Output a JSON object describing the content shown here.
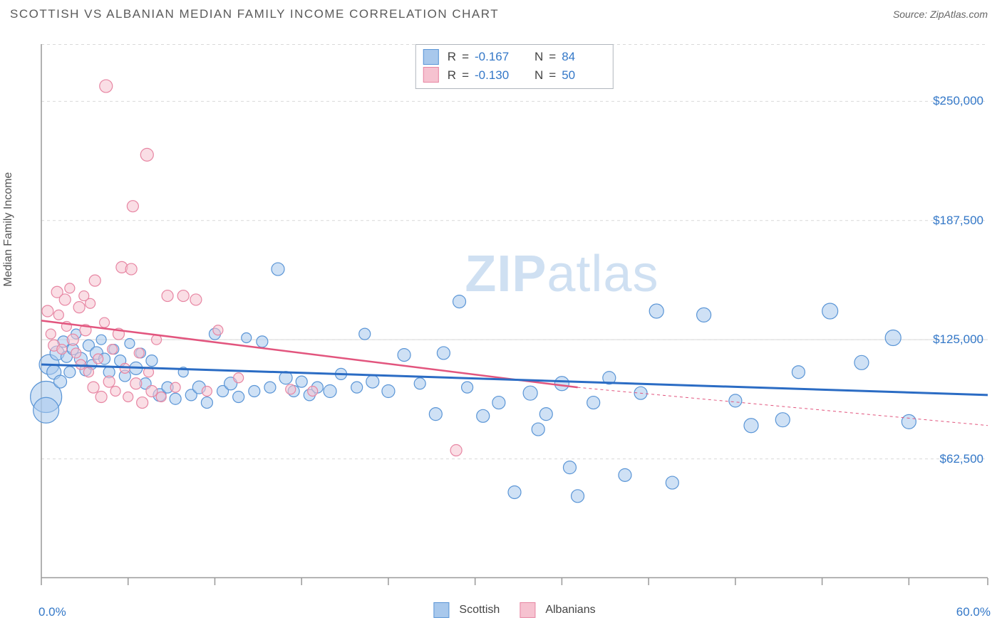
{
  "header": {
    "title": "SCOTTISH VS ALBANIAN MEDIAN FAMILY INCOME CORRELATION CHART",
    "source_prefix": "Source: ",
    "source": "ZipAtlas.com"
  },
  "chart": {
    "type": "scatter",
    "ylabel": "Median Family Income",
    "watermark": {
      "bold": "ZIP",
      "rest": "atlas"
    },
    "xlim": [
      0,
      60
    ],
    "ylim": [
      0,
      280000
    ],
    "x_tick_positions": [
      0,
      5.5,
      11,
      16.5,
      22,
      27.5,
      33,
      38.5,
      44,
      49.5,
      55,
      60
    ],
    "x_tick_labels": {
      "first": "0.0%",
      "last": "60.0%"
    },
    "y_grid_values": [
      62500,
      125000,
      187500,
      250000
    ],
    "y_grid_labels": [
      "$62,500",
      "$125,000",
      "$187,500",
      "$250,000"
    ],
    "y_grid_dashed": [
      true,
      false,
      true,
      false,
      true
    ],
    "grid_color": "#d9d9d9",
    "axis_color": "#999999",
    "background": "#ffffff",
    "series": [
      {
        "name": "Scottish",
        "fill": "#a8c8ec",
        "stroke": "#5a95d6",
        "fill_opacity": 0.55,
        "stats": {
          "R": "-0.167",
          "N": "84"
        },
        "trend": {
          "x1": 0,
          "y1": 112000,
          "x2": 60,
          "y2": 96000,
          "color": "#2b6cc4",
          "width": 3,
          "dash": ""
        },
        "points": [
          {
            "x": 0.3,
            "y": 95000,
            "r": 22
          },
          {
            "x": 0.3,
            "y": 88000,
            "r": 18
          },
          {
            "x": 0.5,
            "y": 112000,
            "r": 14
          },
          {
            "x": 0.8,
            "y": 108000,
            "r": 10
          },
          {
            "x": 1.0,
            "y": 118000,
            "r": 10
          },
          {
            "x": 1.2,
            "y": 103000,
            "r": 9
          },
          {
            "x": 1.4,
            "y": 124000,
            "r": 8
          },
          {
            "x": 1.6,
            "y": 116000,
            "r": 8
          },
          {
            "x": 1.8,
            "y": 108000,
            "r": 8
          },
          {
            "x": 2.0,
            "y": 120000,
            "r": 8
          },
          {
            "x": 2.2,
            "y": 128000,
            "r": 7
          },
          {
            "x": 2.5,
            "y": 115000,
            "r": 9
          },
          {
            "x": 2.8,
            "y": 109000,
            "r": 8
          },
          {
            "x": 3.0,
            "y": 122000,
            "r": 8
          },
          {
            "x": 3.2,
            "y": 112000,
            "r": 7
          },
          {
            "x": 3.5,
            "y": 118000,
            "r": 9
          },
          {
            "x": 3.8,
            "y": 125000,
            "r": 7
          },
          {
            "x": 4.0,
            "y": 115000,
            "r": 8
          },
          {
            "x": 4.3,
            "y": 108000,
            "r": 8
          },
          {
            "x": 4.6,
            "y": 120000,
            "r": 7
          },
          {
            "x": 5.0,
            "y": 114000,
            "r": 8
          },
          {
            "x": 5.3,
            "y": 106000,
            "r": 8
          },
          {
            "x": 5.6,
            "y": 123000,
            "r": 7
          },
          {
            "x": 6.0,
            "y": 110000,
            "r": 9
          },
          {
            "x": 6.3,
            "y": 118000,
            "r": 7
          },
          {
            "x": 6.6,
            "y": 102000,
            "r": 8
          },
          {
            "x": 7.0,
            "y": 114000,
            "r": 8
          },
          {
            "x": 7.5,
            "y": 96000,
            "r": 9
          },
          {
            "x": 8.0,
            "y": 100000,
            "r": 8
          },
          {
            "x": 8.5,
            "y": 94000,
            "r": 8
          },
          {
            "x": 9.0,
            "y": 108000,
            "r": 7
          },
          {
            "x": 9.5,
            "y": 96000,
            "r": 8
          },
          {
            "x": 10.0,
            "y": 100000,
            "r": 9
          },
          {
            "x": 10.5,
            "y": 92000,
            "r": 8
          },
          {
            "x": 11.0,
            "y": 128000,
            "r": 8
          },
          {
            "x": 11.5,
            "y": 98000,
            "r": 8
          },
          {
            "x": 12.0,
            "y": 102000,
            "r": 9
          },
          {
            "x": 12.5,
            "y": 95000,
            "r": 8
          },
          {
            "x": 13.0,
            "y": 126000,
            "r": 7
          },
          {
            "x": 13.5,
            "y": 98000,
            "r": 8
          },
          {
            "x": 14.0,
            "y": 124000,
            "r": 8
          },
          {
            "x": 14.5,
            "y": 100000,
            "r": 8
          },
          {
            "x": 15.0,
            "y": 162000,
            "r": 9
          },
          {
            "x": 15.5,
            "y": 105000,
            "r": 9
          },
          {
            "x": 16.0,
            "y": 98000,
            "r": 8
          },
          {
            "x": 16.5,
            "y": 103000,
            "r": 8
          },
          {
            "x": 17.0,
            "y": 96000,
            "r": 8
          },
          {
            "x": 17.5,
            "y": 100000,
            "r": 8
          },
          {
            "x": 18.3,
            "y": 98000,
            "r": 9
          },
          {
            "x": 19.0,
            "y": 107000,
            "r": 8
          },
          {
            "x": 20.0,
            "y": 100000,
            "r": 8
          },
          {
            "x": 20.5,
            "y": 128000,
            "r": 8
          },
          {
            "x": 21.0,
            "y": 103000,
            "r": 9
          },
          {
            "x": 22.0,
            "y": 98000,
            "r": 9
          },
          {
            "x": 23.0,
            "y": 117000,
            "r": 9
          },
          {
            "x": 24.0,
            "y": 102000,
            "r": 8
          },
          {
            "x": 25.0,
            "y": 86000,
            "r": 9
          },
          {
            "x": 25.5,
            "y": 118000,
            "r": 9
          },
          {
            "x": 26.5,
            "y": 145000,
            "r": 9
          },
          {
            "x": 27.0,
            "y": 100000,
            "r": 8
          },
          {
            "x": 28.0,
            "y": 85000,
            "r": 9
          },
          {
            "x": 29.0,
            "y": 92000,
            "r": 9
          },
          {
            "x": 30.0,
            "y": 45000,
            "r": 9
          },
          {
            "x": 31.0,
            "y": 97000,
            "r": 10
          },
          {
            "x": 31.5,
            "y": 78000,
            "r": 9
          },
          {
            "x": 32.0,
            "y": 86000,
            "r": 9
          },
          {
            "x": 33.0,
            "y": 102000,
            "r": 10
          },
          {
            "x": 33.5,
            "y": 58000,
            "r": 9
          },
          {
            "x": 34.0,
            "y": 43000,
            "r": 9
          },
          {
            "x": 35.0,
            "y": 92000,
            "r": 9
          },
          {
            "x": 36.0,
            "y": 105000,
            "r": 9
          },
          {
            "x": 37.0,
            "y": 54000,
            "r": 9
          },
          {
            "x": 38.0,
            "y": 97000,
            "r": 9
          },
          {
            "x": 39.0,
            "y": 140000,
            "r": 10
          },
          {
            "x": 40.0,
            "y": 50000,
            "r": 9
          },
          {
            "x": 42.0,
            "y": 138000,
            "r": 10
          },
          {
            "x": 44.0,
            "y": 93000,
            "r": 9
          },
          {
            "x": 45.0,
            "y": 80000,
            "r": 10
          },
          {
            "x": 47.0,
            "y": 83000,
            "r": 10
          },
          {
            "x": 48.0,
            "y": 108000,
            "r": 9
          },
          {
            "x": 50.0,
            "y": 140000,
            "r": 11
          },
          {
            "x": 52.0,
            "y": 113000,
            "r": 10
          },
          {
            "x": 54.0,
            "y": 126000,
            "r": 11
          },
          {
            "x": 55.0,
            "y": 82000,
            "r": 10
          }
        ]
      },
      {
        "name": "Albanians",
        "fill": "#f6c2d0",
        "stroke": "#e786a3",
        "fill_opacity": 0.55,
        "stats": {
          "R": "-0.130",
          "N": "50"
        },
        "trend_solid": {
          "x1": 0,
          "y1": 135000,
          "x2": 34,
          "y2": 100000,
          "color": "#e2557e",
          "width": 2.5
        },
        "trend_dash": {
          "x1": 34,
          "y1": 100000,
          "x2": 60,
          "y2": 80000,
          "color": "#e2557e",
          "width": 1,
          "dash": "4 4"
        },
        "points": [
          {
            "x": 0.4,
            "y": 140000,
            "r": 8
          },
          {
            "x": 0.6,
            "y": 128000,
            "r": 7
          },
          {
            "x": 0.8,
            "y": 122000,
            "r": 8
          },
          {
            "x": 1.0,
            "y": 150000,
            "r": 8
          },
          {
            "x": 1.1,
            "y": 138000,
            "r": 7
          },
          {
            "x": 1.3,
            "y": 120000,
            "r": 7
          },
          {
            "x": 1.5,
            "y": 146000,
            "r": 8
          },
          {
            "x": 1.6,
            "y": 132000,
            "r": 7
          },
          {
            "x": 1.8,
            "y": 152000,
            "r": 7
          },
          {
            "x": 2.0,
            "y": 125000,
            "r": 8
          },
          {
            "x": 2.2,
            "y": 118000,
            "r": 7
          },
          {
            "x": 2.4,
            "y": 142000,
            "r": 8
          },
          {
            "x": 2.5,
            "y": 112000,
            "r": 7
          },
          {
            "x": 2.7,
            "y": 148000,
            "r": 7
          },
          {
            "x": 2.8,
            "y": 130000,
            "r": 8
          },
          {
            "x": 3.0,
            "y": 108000,
            "r": 7
          },
          {
            "x": 3.1,
            "y": 144000,
            "r": 7
          },
          {
            "x": 3.3,
            "y": 100000,
            "r": 8
          },
          {
            "x": 3.4,
            "y": 156000,
            "r": 8
          },
          {
            "x": 3.6,
            "y": 115000,
            "r": 7
          },
          {
            "x": 3.8,
            "y": 95000,
            "r": 8
          },
          {
            "x": 4.0,
            "y": 134000,
            "r": 7
          },
          {
            "x": 4.1,
            "y": 258000,
            "r": 9
          },
          {
            "x": 4.3,
            "y": 103000,
            "r": 8
          },
          {
            "x": 4.5,
            "y": 120000,
            "r": 7
          },
          {
            "x": 4.7,
            "y": 98000,
            "r": 7
          },
          {
            "x": 4.9,
            "y": 128000,
            "r": 8
          },
          {
            "x": 5.1,
            "y": 163000,
            "r": 8
          },
          {
            "x": 5.3,
            "y": 110000,
            "r": 7
          },
          {
            "x": 5.5,
            "y": 95000,
            "r": 7
          },
          {
            "x": 5.7,
            "y": 162000,
            "r": 8
          },
          {
            "x": 5.8,
            "y": 195000,
            "r": 8
          },
          {
            "x": 6.0,
            "y": 102000,
            "r": 8
          },
          {
            "x": 6.2,
            "y": 118000,
            "r": 7
          },
          {
            "x": 6.4,
            "y": 92000,
            "r": 8
          },
          {
            "x": 6.7,
            "y": 222000,
            "r": 9
          },
          {
            "x": 6.8,
            "y": 108000,
            "r": 7
          },
          {
            "x": 7.0,
            "y": 98000,
            "r": 8
          },
          {
            "x": 7.3,
            "y": 125000,
            "r": 7
          },
          {
            "x": 7.6,
            "y": 95000,
            "r": 7
          },
          {
            "x": 8.0,
            "y": 148000,
            "r": 8
          },
          {
            "x": 8.5,
            "y": 100000,
            "r": 7
          },
          {
            "x": 9.0,
            "y": 148000,
            "r": 8
          },
          {
            "x": 9.8,
            "y": 146000,
            "r": 8
          },
          {
            "x": 10.5,
            "y": 98000,
            "r": 7
          },
          {
            "x": 11.2,
            "y": 130000,
            "r": 7
          },
          {
            "x": 12.5,
            "y": 105000,
            "r": 7
          },
          {
            "x": 15.8,
            "y": 99000,
            "r": 7
          },
          {
            "x": 17.2,
            "y": 98000,
            "r": 7
          },
          {
            "x": 26.3,
            "y": 67000,
            "r": 8
          }
        ]
      }
    ]
  }
}
